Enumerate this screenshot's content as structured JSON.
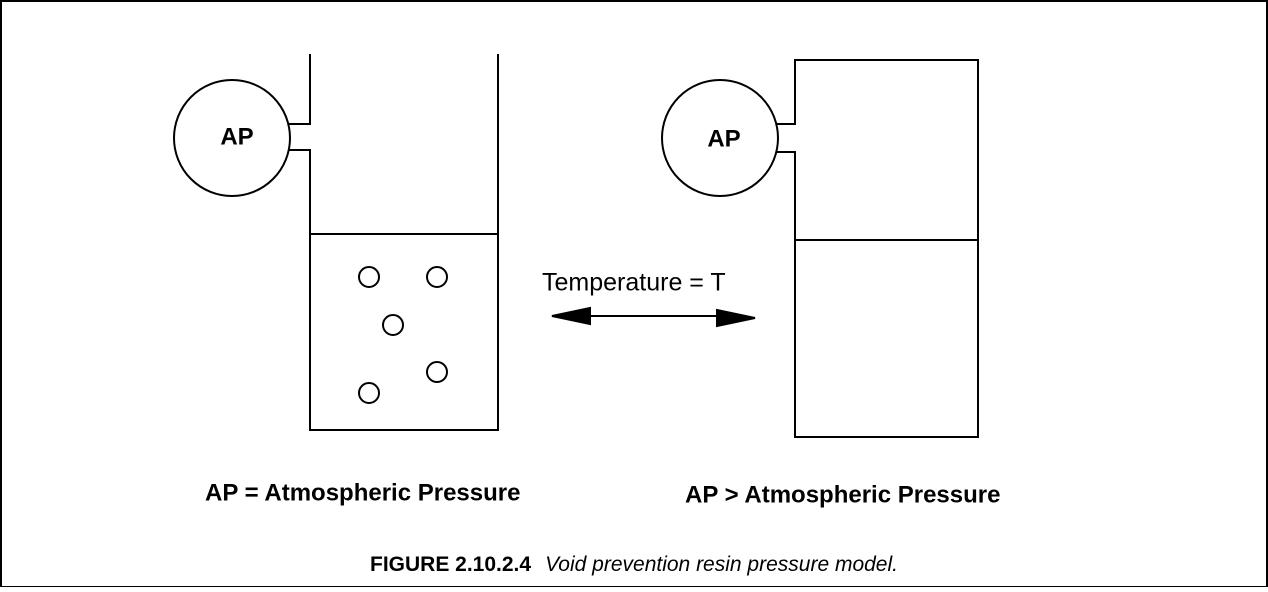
{
  "left": {
    "gauge": "AP",
    "caption": "AP = Atmospheric Pressure"
  },
  "right": {
    "gauge": "AP",
    "caption": "AP > Atmospheric Pressure"
  },
  "arrow_label": "Temperature = T",
  "figure": {
    "number": "FIGURE 2.10.2.4",
    "caption": "Void prevention resin pressure model."
  }
}
